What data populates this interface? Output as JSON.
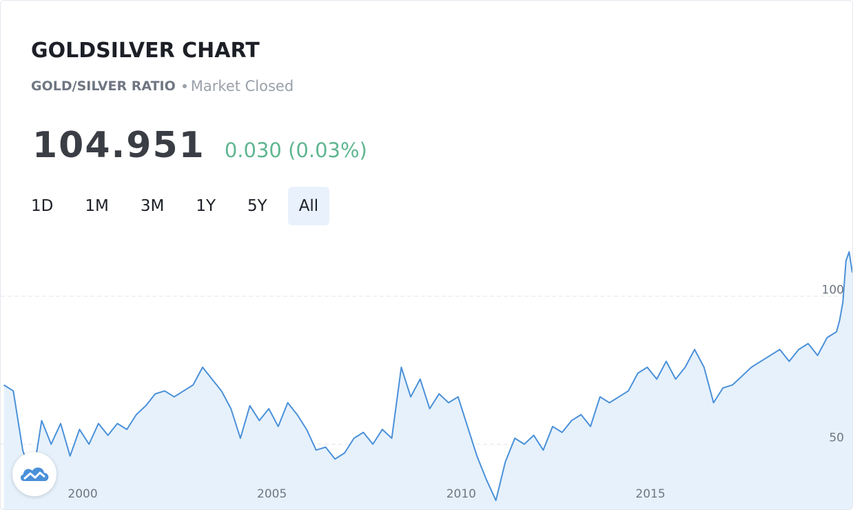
{
  "header": {
    "title": "GOLDSILVER CHART",
    "subtitle": "GOLD/SILVER RATIO",
    "market_status": "Market Closed"
  },
  "quote": {
    "price": "104.951",
    "change": "0.030 (0.03%)"
  },
  "range_tabs": [
    {
      "label": "1D",
      "active": false
    },
    {
      "label": "1M",
      "active": false
    },
    {
      "label": "3M",
      "active": false
    },
    {
      "label": "1Y",
      "active": false
    },
    {
      "label": "5Y",
      "active": false
    },
    {
      "label": "All",
      "active": true
    }
  ],
  "colors": {
    "line": "#4a90d9",
    "area": "#e6f1fb",
    "positive": "#5fb690"
  },
  "logo": {
    "icon": "tradingview-cloud-icon"
  },
  "chart_data": {
    "type": "area",
    "title": "",
    "xlabel": "",
    "ylabel": "",
    "x_ticks": [
      "2000",
      "2005",
      "2010",
      "2015"
    ],
    "y_ticks": [
      50,
      100
    ],
    "grid": "dashed horizontal at y-ticks",
    "xlim": [
      "1997-11",
      "2020-05"
    ],
    "ylim": [
      28,
      130
    ],
    "series": [
      {
        "x": [
          "1997-12",
          "1998-03",
          "1998-06",
          "1998-09",
          "1998-12",
          "1999-03",
          "1999-06",
          "1999-09",
          "1999-12",
          "2000-03",
          "2000-06",
          "2000-09",
          "2000-12",
          "2001-03",
          "2001-06",
          "2001-09",
          "2001-12",
          "2002-03",
          "2002-06",
          "2002-09",
          "2002-12",
          "2003-03",
          "2003-06",
          "2003-09",
          "2003-12",
          "2004-03",
          "2004-06",
          "2004-09",
          "2004-12",
          "2005-03",
          "2005-06",
          "2005-09",
          "2005-12",
          "2006-03",
          "2006-06",
          "2006-09",
          "2006-12",
          "2007-03",
          "2007-06",
          "2007-09",
          "2007-12",
          "2008-03",
          "2008-06",
          "2008-09",
          "2008-12",
          "2009-03",
          "2009-06",
          "2009-09",
          "2009-12",
          "2010-03",
          "2010-06",
          "2010-09",
          "2010-12",
          "2011-03",
          "2011-06",
          "2011-09",
          "2011-12",
          "2012-03",
          "2012-06",
          "2012-09",
          "2012-12",
          "2013-03",
          "2013-06",
          "2013-09",
          "2013-12",
          "2014-03",
          "2014-06",
          "2014-09",
          "2014-12",
          "2015-03",
          "2015-06",
          "2015-09",
          "2015-12",
          "2016-03",
          "2016-06",
          "2016-09",
          "2016-12",
          "2017-03",
          "2017-06",
          "2017-09",
          "2017-12",
          "2018-03",
          "2018-06",
          "2018-09",
          "2018-12",
          "2019-03",
          "2019-06",
          "2019-09",
          "2019-12",
          "2020-01",
          "2020-02",
          "2020-03",
          "2020-04",
          "2020-05"
        ],
        "values": [
          70,
          68,
          48,
          38,
          58,
          50,
          57,
          46,
          55,
          50,
          57,
          53,
          57,
          55,
          60,
          63,
          67,
          68,
          66,
          68,
          70,
          76,
          72,
          68,
          62,
          52,
          63,
          58,
          62,
          56,
          64,
          60,
          55,
          48,
          49,
          45,
          47,
          52,
          54,
          50,
          55,
          52,
          76,
          66,
          72,
          62,
          67,
          64,
          66,
          56,
          46,
          38,
          31,
          44,
          52,
          50,
          53,
          48,
          56,
          54,
          58,
          60,
          56,
          66,
          64,
          66,
          68,
          74,
          76,
          72,
          78,
          72,
          76,
          82,
          76,
          64,
          69,
          70,
          73,
          76,
          78,
          80,
          82,
          78,
          82,
          84,
          80,
          86,
          88,
          92,
          98,
          112,
          115,
          108
        ]
      }
    ]
  }
}
